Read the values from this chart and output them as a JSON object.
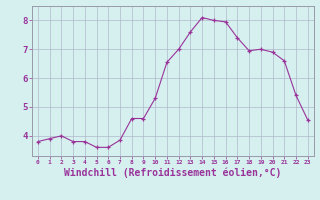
{
  "x": [
    0,
    1,
    2,
    3,
    4,
    5,
    6,
    7,
    8,
    9,
    10,
    11,
    12,
    13,
    14,
    15,
    16,
    17,
    18,
    19,
    20,
    21,
    22,
    23
  ],
  "y": [
    3.8,
    3.9,
    4.0,
    3.8,
    3.8,
    3.6,
    3.6,
    3.85,
    4.6,
    4.6,
    5.3,
    6.55,
    7.0,
    7.6,
    8.1,
    8.0,
    7.95,
    7.4,
    6.95,
    7.0,
    6.9,
    6.6,
    5.4,
    4.55
  ],
  "line_color": "#993399",
  "marker": "+",
  "marker_size": 3,
  "bg_color": "#d6f0f0",
  "grid_color": "#b0b8cc",
  "tick_color": "#993399",
  "xlabel": "Windchill (Refroidissement éolien,°C)",
  "xlabel_fontsize": 7,
  "ylabel_ticks": [
    4,
    5,
    6,
    7,
    8
  ],
  "ylim": [
    3.3,
    8.5
  ],
  "xlim": [
    -0.5,
    23.5
  ]
}
